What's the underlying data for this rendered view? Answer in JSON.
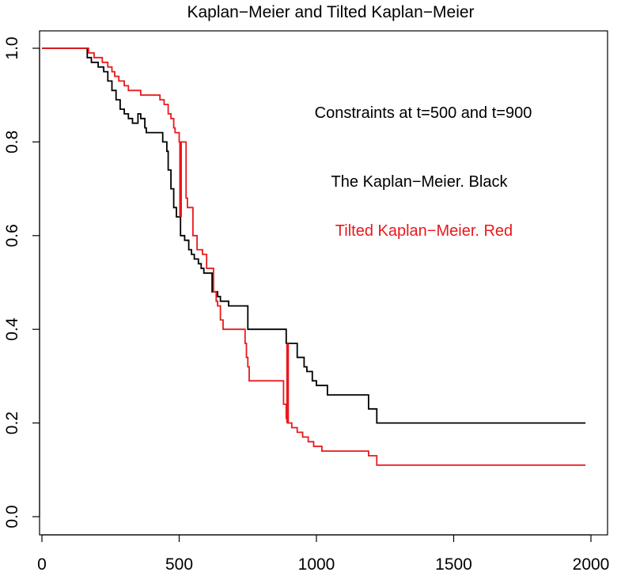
{
  "chart_data": {
    "type": "line",
    "title": "Kaplan−Meier and Tilted Kaplan−Meier",
    "xlabel": "",
    "ylabel": "",
    "xlim": [
      0,
      2000
    ],
    "ylim": [
      0,
      1
    ],
    "x_ticks": [
      0,
      500,
      1000,
      1500,
      2000
    ],
    "x_tick_labels": [
      "0",
      "500",
      "1000",
      "1500",
      "2000"
    ],
    "y_ticks": [
      0,
      0.2,
      0.4,
      0.6,
      0.8,
      1
    ],
    "y_tick_labels": [
      "0.0",
      "0.2",
      "0.4",
      "0.6",
      "0.8",
      "1.0"
    ],
    "grid": false,
    "line_style": "step",
    "annotations": [
      {
        "text": "Constraints at t=500 and t=900",
        "color": "#000000"
      },
      {
        "text": "The Kaplan−Meier.  Black",
        "color": "#000000"
      },
      {
        "text": "Tilted Kaplan−Meier. Red",
        "color": "#e8191c"
      }
    ],
    "series": [
      {
        "color": "#000000",
        "x": [
          0,
          155,
          165,
          180,
          205,
          225,
          240,
          255,
          270,
          285,
          300,
          315,
          330,
          350,
          360,
          375,
          380,
          440,
          455,
          460,
          470,
          480,
          490,
          500,
          505,
          520,
          535,
          545,
          555,
          570,
          580,
          590,
          620,
          640,
          650,
          680,
          700,
          750,
          880,
          890,
          930,
          955,
          965,
          985,
          1000,
          1040,
          1190,
          1220,
          1980
        ],
        "y": [
          1.0,
          1.0,
          0.98,
          0.97,
          0.96,
          0.95,
          0.93,
          0.91,
          0.89,
          0.87,
          0.86,
          0.85,
          0.84,
          0.86,
          0.85,
          0.83,
          0.82,
          0.8,
          0.78,
          0.74,
          0.7,
          0.66,
          0.64,
          0.64,
          0.6,
          0.59,
          0.57,
          0.56,
          0.55,
          0.54,
          0.53,
          0.52,
          0.48,
          0.47,
          0.46,
          0.45,
          0.45,
          0.4,
          0.4,
          0.37,
          0.34,
          0.32,
          0.31,
          0.29,
          0.28,
          0.26,
          0.23,
          0.2,
          0.2
        ]
      },
      {
        "color": "#e8191c",
        "x": [
          0,
          155,
          170,
          190,
          220,
          240,
          255,
          265,
          280,
          300,
          315,
          330,
          360,
          395,
          430,
          445,
          460,
          470,
          480,
          485,
          500,
          505,
          525,
          530,
          550,
          565,
          585,
          600,
          625,
          635,
          640,
          650,
          660,
          665,
          700,
          740,
          745,
          750,
          755,
          870,
          880,
          890,
          895,
          900,
          905,
          910,
          930,
          950,
          970,
          990,
          1000,
          1020,
          1060,
          1190,
          1220,
          1980
        ],
        "y": [
          1.0,
          1.0,
          0.99,
          0.98,
          0.97,
          0.96,
          0.95,
          0.94,
          0.93,
          0.92,
          0.91,
          0.91,
          0.9,
          0.9,
          0.89,
          0.88,
          0.86,
          0.85,
          0.83,
          0.82,
          0.8,
          0.8,
          0.68,
          0.66,
          0.6,
          0.57,
          0.56,
          0.53,
          0.48,
          0.46,
          0.45,
          0.42,
          0.4,
          0.4,
          0.4,
          0.37,
          0.34,
          0.32,
          0.29,
          0.29,
          0.24,
          0.21,
          0.2,
          0.2,
          0.2,
          0.19,
          0.18,
          0.17,
          0.16,
          0.15,
          0.15,
          0.14,
          0.14,
          0.13,
          0.11,
          0.11
        ]
      }
    ]
  }
}
